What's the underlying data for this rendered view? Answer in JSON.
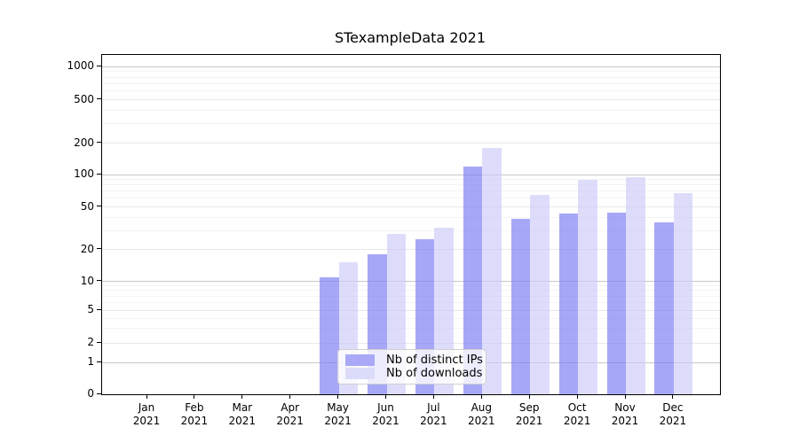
{
  "chart_data": {
    "type": "bar",
    "title": "STexampleData 2021",
    "categories": [
      "Jan",
      "Feb",
      "Mar",
      "Apr",
      "May",
      "Jun",
      "Jul",
      "Aug",
      "Sep",
      "Oct",
      "Nov",
      "Dec"
    ],
    "x_year": "2021",
    "series": [
      {
        "name": "Nb of distinct IPs",
        "values": [
          0,
          0,
          0,
          0,
          11,
          18,
          25,
          120,
          39,
          43,
          44,
          36
        ],
        "color": "rgba(120,120,242,0.65)",
        "legend_color": "#a9a9f7"
      },
      {
        "name": "Nb of downloads",
        "values": [
          0,
          0,
          0,
          0,
          15,
          28,
          32,
          180,
          65,
          90,
          95,
          67
        ],
        "color": "rgba(203,203,249,0.65)",
        "legend_color": "#dcdcfa"
      }
    ],
    "y_ticks": [
      0,
      1,
      2,
      5,
      10,
      20,
      50,
      100,
      200,
      500,
      1000
    ],
    "y_minor_ticks": [
      3,
      4,
      6,
      7,
      8,
      9,
      30,
      40,
      60,
      70,
      80,
      90,
      300,
      400,
      600,
      700,
      800,
      900
    ],
    "y_scale": "symlog",
    "ylim": [
      0,
      1000
    ],
    "grid": "horizontal",
    "legend_position": "inside-bottom-center",
    "colors": {
      "grid_major": "#c8c8c8",
      "grid_mid": "#e9e9e9",
      "grid_minor": "#f4f4f4",
      "axis": "#000000",
      "background": "#ffffff"
    }
  }
}
